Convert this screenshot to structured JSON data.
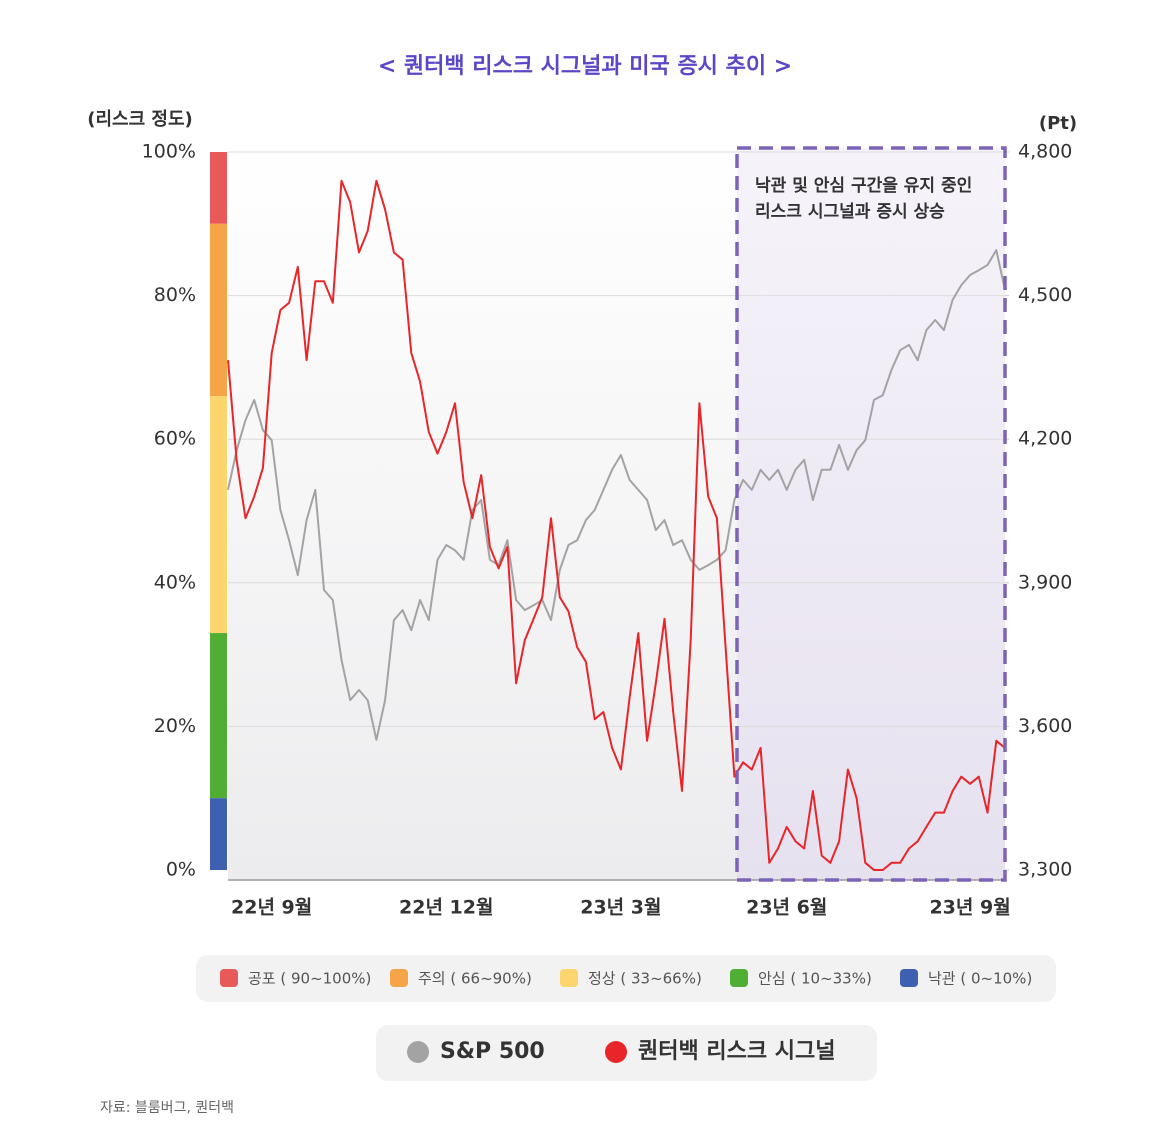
{
  "chart_data": {
    "type": "line",
    "title": "< 퀀터백 리스크 시그널과 미국 증시 추이 >",
    "y_label": "(리스크 정도)",
    "y2_label": "(Pt)",
    "annotation": [
      "낙관 및 안심 구간을 유지 중인",
      "리스크 시그널과 증시 상승"
    ],
    "source": "자료: 블룸버그, 퀀터백",
    "categories": [
      null,
      null,
      null,
      null,
      null,
      "22년 9월",
      null,
      null,
      null,
      null,
      null,
      null,
      null,
      null,
      null,
      null,
      null,
      null,
      null,
      null,
      null,
      null,
      null,
      null,
      null,
      "22년 12월",
      null,
      null,
      null,
      null,
      null,
      null,
      null,
      null,
      null,
      null,
      null,
      null,
      null,
      null,
      null,
      null,
      null,
      null,
      null,
      "23년 3월",
      null,
      null,
      null,
      null,
      null,
      null,
      null,
      null,
      null,
      null,
      null,
      null,
      null,
      null,
      null,
      null,
      null,
      null,
      "23년 6월",
      null,
      null,
      null,
      null,
      null,
      null,
      null,
      null,
      null,
      null,
      null,
      null,
      null,
      null,
      null,
      null,
      null,
      null,
      null,
      null,
      "23년 9월",
      null,
      null,
      null,
      null
    ],
    "ylim": [
      0,
      100
    ],
    "yticks": [
      {
        "value": 0,
        "label": "0%"
      },
      {
        "value": 20,
        "label": "20%"
      },
      {
        "value": 40,
        "label": "40%"
      },
      {
        "value": 60,
        "label": "60%"
      },
      {
        "value": 80,
        "label": "80%"
      },
      {
        "value": 100,
        "label": "100%"
      }
    ],
    "y2lim": [
      3300,
      4800
    ],
    "y2ticks": [
      {
        "value": 3300,
        "label": "3,300"
      },
      {
        "value": 3600,
        "label": "3,600"
      },
      {
        "value": 3900,
        "label": "3,900"
      },
      {
        "value": 4200,
        "label": "4,200"
      },
      {
        "value": 4500,
        "label": "4,500"
      },
      {
        "value": 4800,
        "label": "4,800"
      }
    ],
    "grid": true,
    "zones": [
      {
        "label": "공포 ( 90~100%)",
        "color": "#e85a5a",
        "from": 90,
        "to": 100
      },
      {
        "label": "주의 ( 66~90%)",
        "color": "#f5a548",
        "from": 66,
        "to": 90
      },
      {
        "label": "정상 ( 33~66%)",
        "color": "#fdd56e",
        "from": 33,
        "to": 66
      },
      {
        "label": "안심 ( 10~33%)",
        "color": "#4fae33",
        "from": 10,
        "to": 33
      },
      {
        "label": "낙관 ( 0~10%)",
        "color": "#3f5fb0",
        "from": 0,
        "to": 10
      }
    ],
    "series": [
      {
        "name": "S&P 500",
        "color": "#a3a3a3",
        "axis": "y2",
        "values": [
          4094,
          4177,
          4240,
          4282,
          4219,
          4198,
          4052,
          3989,
          3916,
          4031,
          4094,
          3885,
          3864,
          3739,
          3655,
          3676,
          3655,
          3572,
          3655,
          3822,
          3843,
          3801,
          3864,
          3822,
          3948,
          3979,
          3968,
          3948,
          4052,
          4073,
          3948,
          3937,
          3989,
          3864,
          3843,
          3853,
          3864,
          3822,
          3927,
          3979,
          3989,
          4031,
          4052,
          4094,
          4136,
          4167,
          4115,
          4094,
          4073,
          4010,
          4031,
          3979,
          3989,
          3948,
          3927,
          3937,
          3948,
          3968,
          4073,
          4115,
          4094,
          4136,
          4115,
          4136,
          4094,
          4136,
          4157,
          4073,
          4136,
          4136,
          4188,
          4136,
          4177,
          4198,
          4282,
          4292,
          4345,
          4386,
          4397,
          4365,
          4428,
          4449,
          4428,
          4491,
          4522,
          4543,
          4553,
          4564,
          4595,
          4512
        ]
      },
      {
        "name": "퀀터백 리스크 시그널",
        "color": "#e8262a",
        "values": [
          71,
          57,
          49,
          52,
          56,
          72,
          78,
          79,
          84,
          71,
          82,
          82,
          79,
          96,
          93,
          86,
          89,
          96,
          92,
          86,
          85,
          72,
          68,
          61,
          58,
          61,
          65,
          54,
          49,
          55,
          45,
          42,
          45,
          26,
          32,
          35,
          38,
          49,
          38,
          36,
          31,
          29,
          21,
          22,
          17,
          14,
          24,
          33,
          18,
          26,
          35,
          22,
          11,
          32,
          65,
          52,
          49,
          31,
          13,
          15,
          14,
          17,
          1,
          3,
          6,
          4,
          3,
          11,
          2,
          1,
          4,
          14,
          10,
          1,
          0,
          0,
          1,
          1,
          3,
          4,
          6,
          8,
          8,
          11,
          13,
          12,
          13,
          8,
          18,
          17
        ]
      }
    ]
  }
}
